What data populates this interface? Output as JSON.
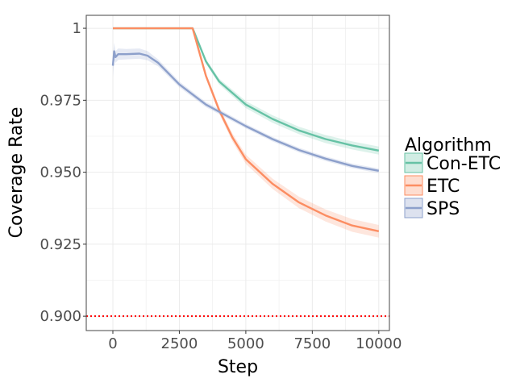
{
  "chart_data": {
    "type": "line",
    "xlabel": "Step",
    "ylabel": "Coverage Rate",
    "xlim": [
      -1000,
      10400
    ],
    "ylim": [
      0.895,
      1.0045
    ],
    "x_ticks": [
      0,
      2500,
      5000,
      7500,
      10000
    ],
    "x_tick_labels": [
      "0",
      "2500",
      "5000",
      "7500",
      "10000"
    ],
    "y_ticks": [
      0.9,
      0.925,
      0.95,
      0.975,
      1.0
    ],
    "y_tick_labels": [
      "0.900",
      "0.925",
      "0.950",
      "0.975",
      "1"
    ],
    "grid": true,
    "legend": {
      "title": "Algorithm",
      "position": "right"
    },
    "reference_line": {
      "y": 0.9,
      "color": "#ff0000",
      "style": "dotted"
    },
    "series": [
      {
        "name": "Con-ETC",
        "color": "#66c2a5",
        "x": [
          0,
          1000,
          2000,
          3000,
          3500,
          4000,
          5000,
          6000,
          7000,
          8000,
          9000,
          10000
        ],
        "y": [
          1.0,
          1.0,
          1.0,
          1.0,
          0.9885,
          0.9815,
          0.9735,
          0.9685,
          0.9645,
          0.9615,
          0.9593,
          0.9575
        ],
        "band": [
          0.0003,
          0.0003,
          0.0003,
          0.0003,
          0.0008,
          0.001,
          0.0012,
          0.0013,
          0.0013,
          0.0014,
          0.0014,
          0.0014
        ]
      },
      {
        "name": "ETC",
        "color": "#fc8d62",
        "x": [
          0,
          1000,
          2000,
          3000,
          3500,
          4000,
          4500,
          5000,
          6000,
          7000,
          8000,
          9000,
          10000
        ],
        "y": [
          1.0,
          1.0,
          1.0,
          1.0,
          0.9835,
          0.9715,
          0.962,
          0.9545,
          0.946,
          0.9395,
          0.935,
          0.9315,
          0.9295
        ],
        "band": [
          0.0003,
          0.0003,
          0.0003,
          0.0003,
          0.001,
          0.0012,
          0.0014,
          0.0016,
          0.0018,
          0.002,
          0.0021,
          0.0022,
          0.0022
        ]
      },
      {
        "name": "SPS",
        "color": "#8da0cb",
        "x": [
          0,
          50,
          100,
          200,
          500,
          1000,
          1300,
          1700,
          2500,
          3500,
          5000,
          6000,
          7000,
          8000,
          9000,
          10000
        ],
        "y": [
          0.987,
          0.992,
          0.99,
          0.991,
          0.991,
          0.9912,
          0.9905,
          0.988,
          0.9805,
          0.9735,
          0.966,
          0.9615,
          0.9577,
          0.9547,
          0.9522,
          0.9505
        ],
        "band": [
          0.004,
          0.003,
          0.002,
          0.002,
          0.0018,
          0.0018,
          0.0016,
          0.0012,
          0.001,
          0.0009,
          0.0008,
          0.0008,
          0.0008,
          0.0008,
          0.0008,
          0.0008
        ]
      }
    ]
  }
}
